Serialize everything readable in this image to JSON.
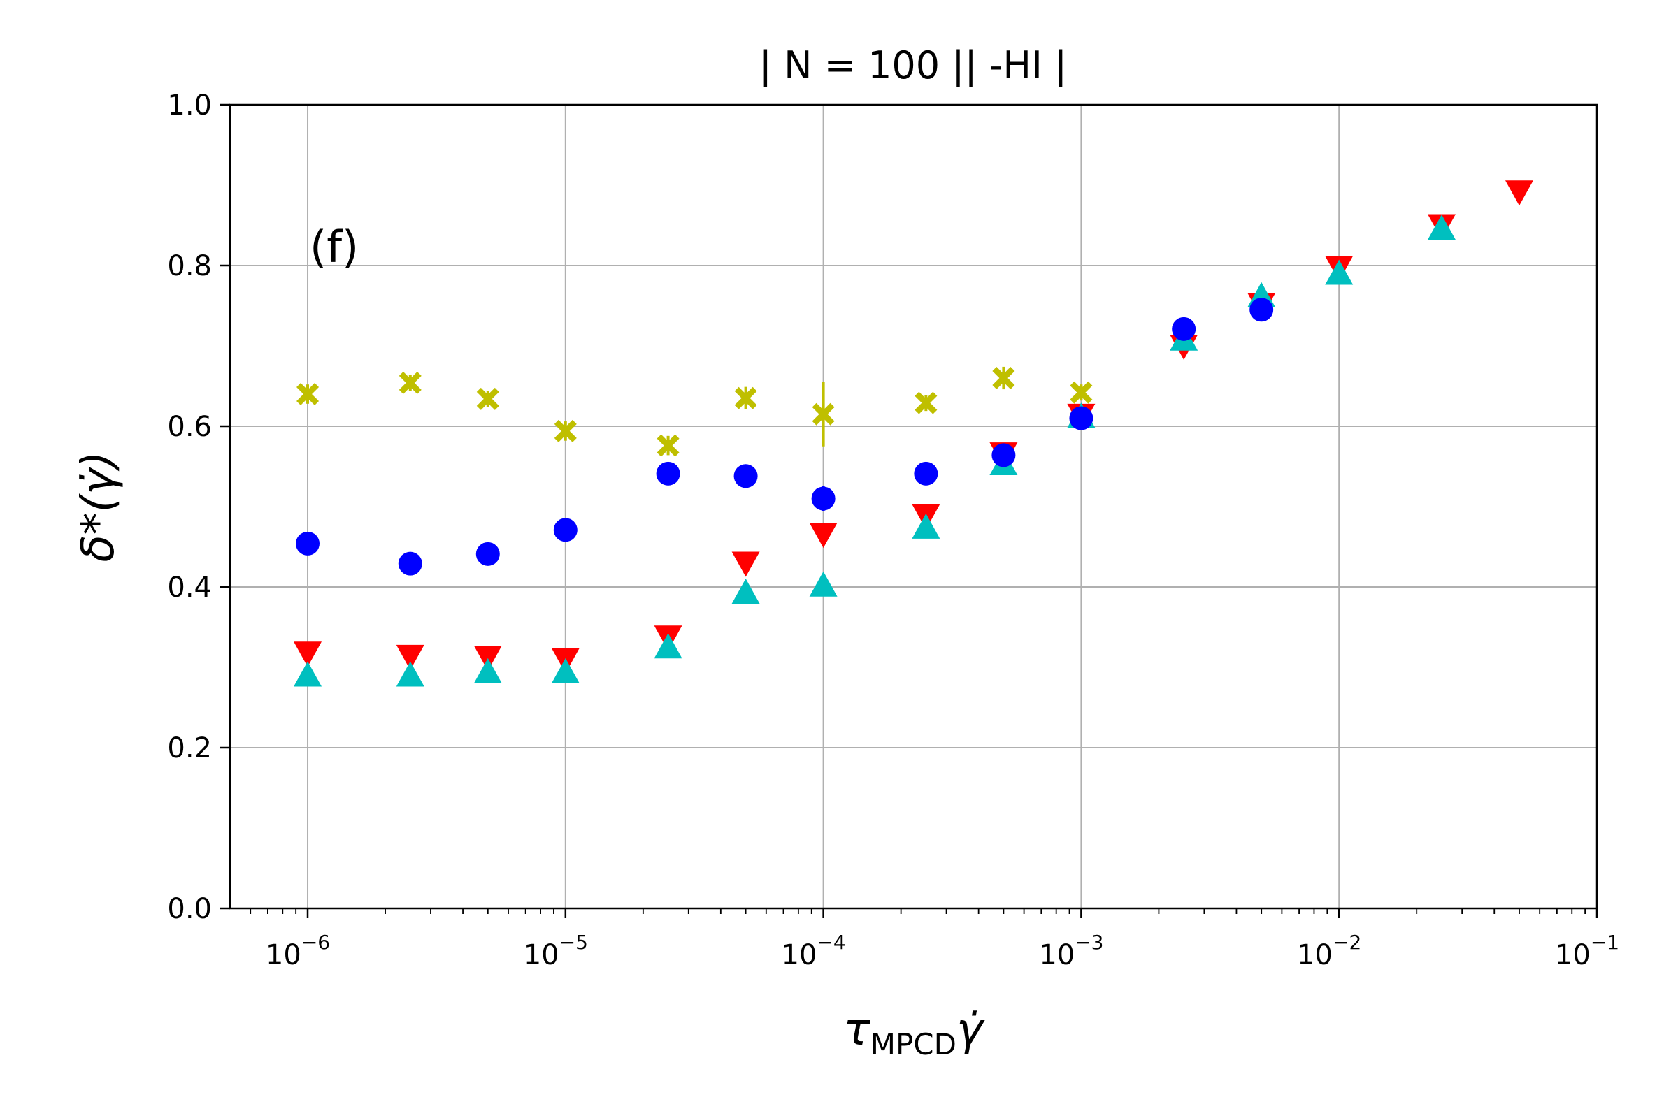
{
  "chart_data": {
    "type": "scatter",
    "title": "| N = 100 || -HI  |",
    "annotation": "(f)",
    "xlabel": {
      "main": "τ",
      "sub": "MPCD",
      "tail": "γ̇"
    },
    "ylabel": "δ*(γ̇)",
    "xscale": "log",
    "xlim": [
      5e-07,
      0.1
    ],
    "ylim": [
      0.0,
      1.0
    ],
    "grid": true,
    "x_ticks": [
      {
        "value": 1e-06,
        "base": "10",
        "exp": "−6"
      },
      {
        "value": 1e-05,
        "base": "10",
        "exp": "−5"
      },
      {
        "value": 0.0001,
        "base": "10",
        "exp": "−4"
      },
      {
        "value": 0.001,
        "base": "10",
        "exp": "−3"
      },
      {
        "value": 0.01,
        "base": "10",
        "exp": "−2"
      },
      {
        "value": 0.1,
        "base": "10",
        "exp": "−1"
      }
    ],
    "y_ticks": [
      {
        "value": 0.0,
        "label": "0.0"
      },
      {
        "value": 0.2,
        "label": "0.2"
      },
      {
        "value": 0.4,
        "label": "0.4"
      },
      {
        "value": 0.6,
        "label": "0.6"
      },
      {
        "value": 0.8,
        "label": "0.8"
      },
      {
        "value": 1.0,
        "label": "1.0"
      }
    ],
    "series": [
      {
        "name": "yellow-x",
        "marker": "X",
        "color": "#bfbf00",
        "points": [
          {
            "x": 1e-06,
            "y": 0.64,
            "err": 0.012
          },
          {
            "x": 2.5e-06,
            "y": 0.654,
            "err": 0.01
          },
          {
            "x": 5e-06,
            "y": 0.634,
            "err": 0.01
          },
          {
            "x": 1e-05,
            "y": 0.594,
            "err": 0.012
          },
          {
            "x": 2.5e-05,
            "y": 0.576,
            "err": 0.012
          },
          {
            "x": 5e-05,
            "y": 0.635,
            "err": 0.014
          },
          {
            "x": 0.0001,
            "y": 0.615,
            "err": 0.04
          },
          {
            "x": 0.00025,
            "y": 0.629,
            "err": 0.01
          },
          {
            "x": 0.0005,
            "y": 0.66,
            "err": 0.014
          },
          {
            "x": 0.001,
            "y": 0.642,
            "err": 0.01
          }
        ]
      },
      {
        "name": "red-down-triangle",
        "marker": "v",
        "color": "#ff0000",
        "points": [
          {
            "x": 1e-06,
            "y": 0.318
          },
          {
            "x": 2.5e-06,
            "y": 0.314
          },
          {
            "x": 5e-06,
            "y": 0.313
          },
          {
            "x": 1e-05,
            "y": 0.31
          },
          {
            "x": 2.5e-05,
            "y": 0.338
          },
          {
            "x": 5e-05,
            "y": 0.43
          },
          {
            "x": 0.0001,
            "y": 0.466
          },
          {
            "x": 0.00025,
            "y": 0.489
          },
          {
            "x": 0.0005,
            "y": 0.566
          },
          {
            "x": 0.001,
            "y": 0.614
          },
          {
            "x": 0.0025,
            "y": 0.7
          },
          {
            "x": 0.005,
            "y": 0.752
          },
          {
            "x": 0.01,
            "y": 0.798
          },
          {
            "x": 0.025,
            "y": 0.85
          },
          {
            "x": 0.05,
            "y": 0.892
          }
        ]
      },
      {
        "name": "cyan-up-triangle",
        "marker": "^",
        "color": "#00bfbf",
        "points": [
          {
            "x": 1e-06,
            "y": 0.29
          },
          {
            "x": 2.5e-06,
            "y": 0.29
          },
          {
            "x": 5e-06,
            "y": 0.294
          },
          {
            "x": 1e-05,
            "y": 0.294
          },
          {
            "x": 2.5e-05,
            "y": 0.325
          },
          {
            "x": 5e-05,
            "y": 0.393
          },
          {
            "x": 0.0001,
            "y": 0.402
          },
          {
            "x": 0.00025,
            "y": 0.474
          },
          {
            "x": 0.0005,
            "y": 0.553
          },
          {
            "x": 0.001,
            "y": 0.612
          },
          {
            "x": 0.0025,
            "y": 0.708
          },
          {
            "x": 0.005,
            "y": 0.762
          },
          {
            "x": 0.01,
            "y": 0.79
          },
          {
            "x": 0.025,
            "y": 0.846
          }
        ]
      },
      {
        "name": "blue-circle",
        "marker": "o",
        "color": "#0000ff",
        "points": [
          {
            "x": 1e-06,
            "y": 0.454,
            "err": 0.01
          },
          {
            "x": 2.5e-06,
            "y": 0.429,
            "err": 0.01
          },
          {
            "x": 5e-06,
            "y": 0.441,
            "err": 0.012
          },
          {
            "x": 1e-05,
            "y": 0.471,
            "err": 0.012
          },
          {
            "x": 2.5e-05,
            "y": 0.541,
            "err": 0.01
          },
          {
            "x": 5e-05,
            "y": 0.538,
            "err": 0.01
          },
          {
            "x": 0.0001,
            "y": 0.51,
            "err": 0.016
          },
          {
            "x": 0.00025,
            "y": 0.541,
            "err": 0.012
          },
          {
            "x": 0.0005,
            "y": 0.564,
            "err": 0.012
          },
          {
            "x": 0.001,
            "y": 0.61,
            "err": 0.012
          },
          {
            "x": 0.0025,
            "y": 0.721,
            "err": 0.01
          },
          {
            "x": 0.005,
            "y": 0.745,
            "err": 0.01
          }
        ]
      }
    ]
  }
}
